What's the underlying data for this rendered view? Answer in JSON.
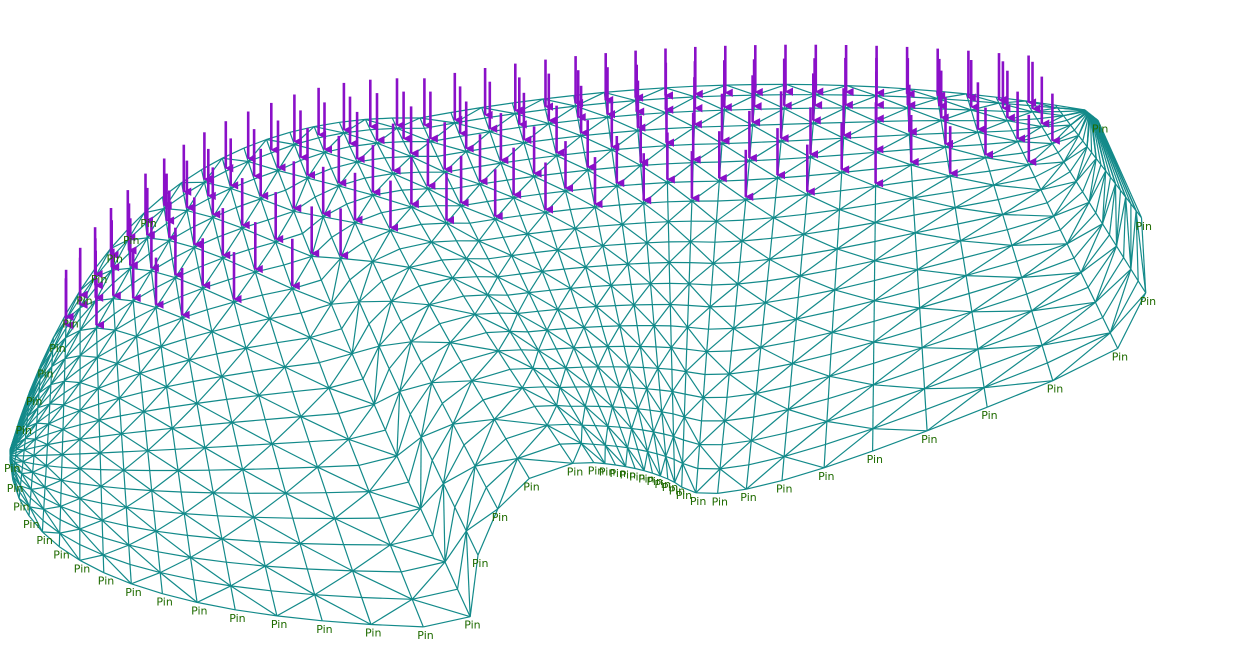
{
  "support_label": "Pin",
  "colors": {
    "background": "#ffffff",
    "mesh": "#138a8a",
    "load": "#8a10c8",
    "support_label": "#1f6b00"
  },
  "icons": {
    "load": "downward-arrow",
    "support": "pin-text-label"
  }
}
